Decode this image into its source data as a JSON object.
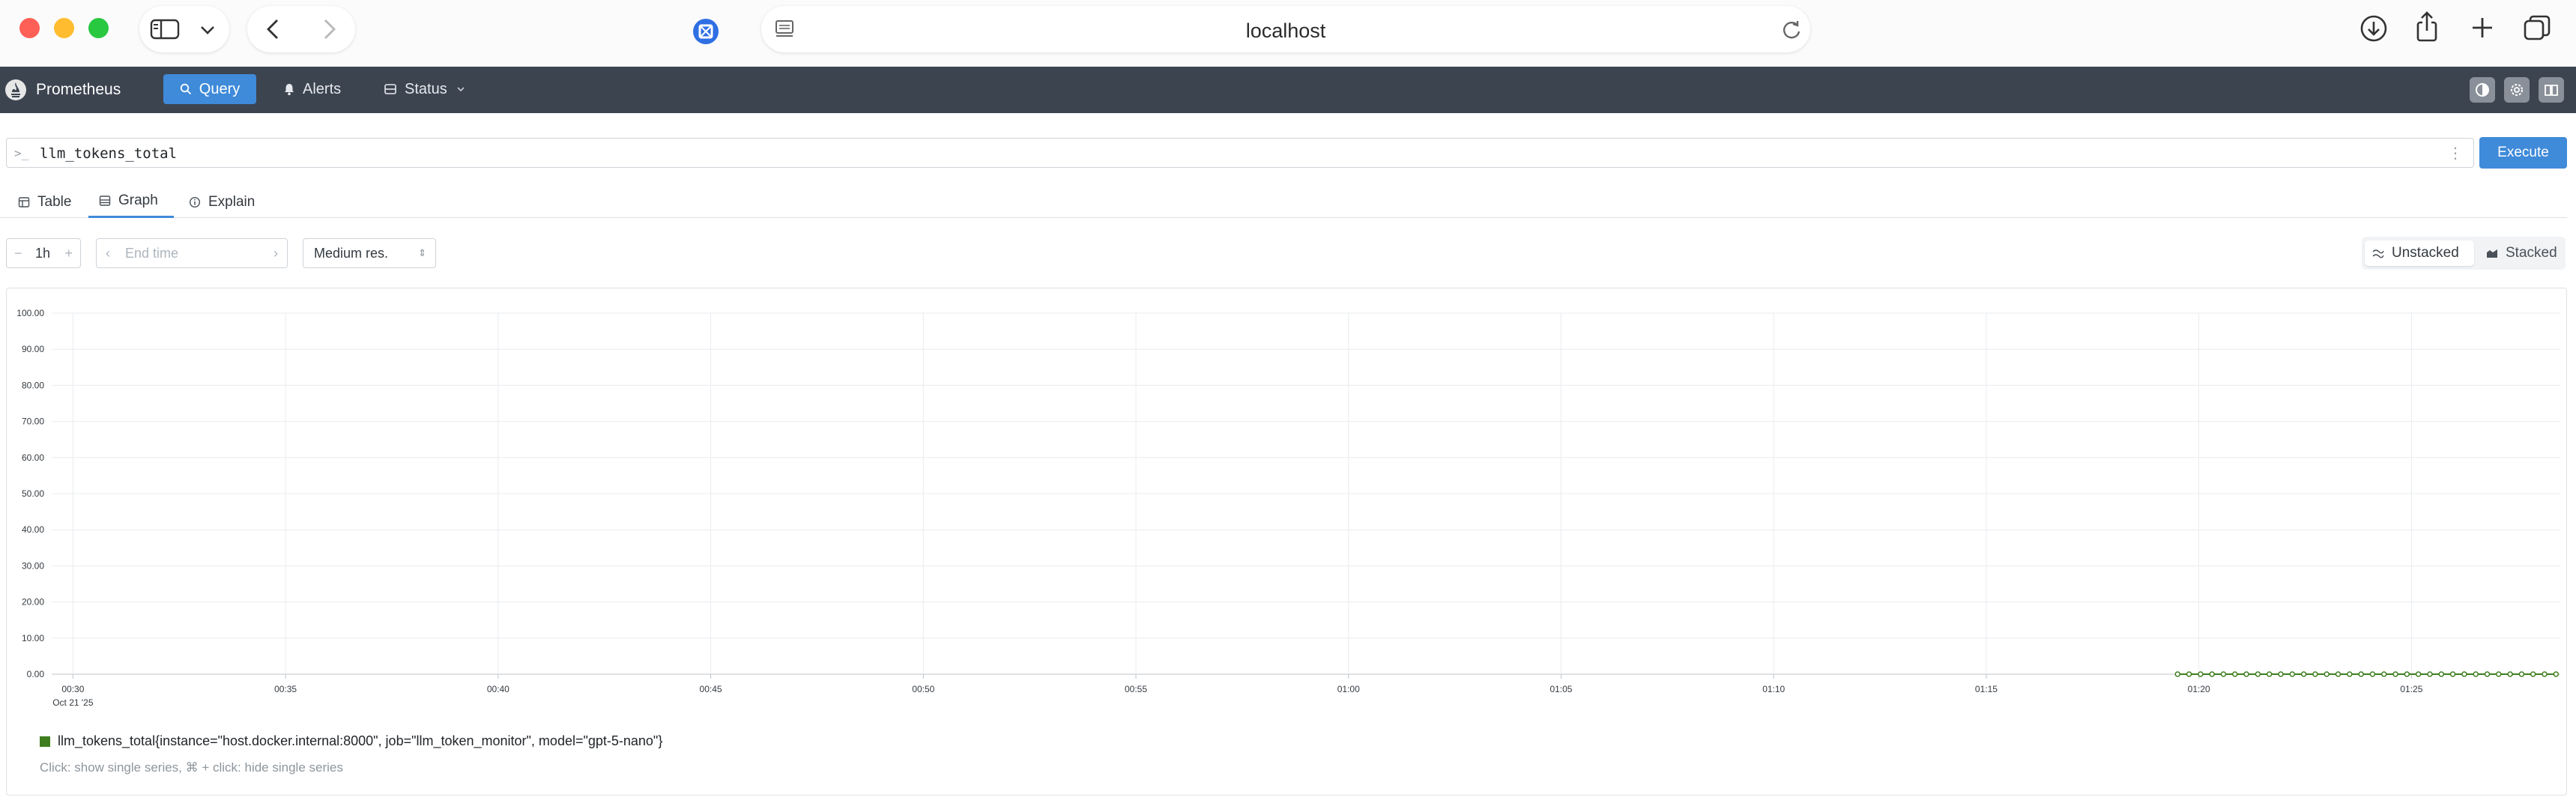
{
  "browser": {
    "url": "localhost"
  },
  "nav": {
    "brand": "Prometheus",
    "query": "Query",
    "alerts": "Alerts",
    "status": "Status"
  },
  "query": {
    "prompt": ">_",
    "expression": "llm_tokens_total",
    "execute": "Execute"
  },
  "tabs": {
    "table": "Table",
    "graph": "Graph",
    "explain": "Explain",
    "active": "Graph"
  },
  "controls": {
    "range": "1h",
    "end_time_placeholder": "End time",
    "resolution": "Medium res.",
    "unstacked": "Unstacked",
    "stacked": "Stacked",
    "mode": "Unstacked"
  },
  "chart_data": {
    "type": "line",
    "title": "",
    "xlabel": "",
    "ylabel": "",
    "ylim": [
      0,
      100
    ],
    "yticks": [
      "0.00",
      "10.00",
      "20.00",
      "30.00",
      "40.00",
      "50.00",
      "60.00",
      "70.00",
      "80.00",
      "90.00",
      "100.00"
    ],
    "xlim_minutes": [
      29.5,
      88.5
    ],
    "xticks": [
      {
        "label": "00:30",
        "sublabel": "Oct 21 '25",
        "minutes": 30
      },
      {
        "label": "00:35",
        "minutes": 35
      },
      {
        "label": "00:40",
        "minutes": 40
      },
      {
        "label": "00:45",
        "minutes": 45
      },
      {
        "label": "00:50",
        "minutes": 50
      },
      {
        "label": "00:55",
        "minutes": 55
      },
      {
        "label": "01:00",
        "minutes": 60
      },
      {
        "label": "01:05",
        "minutes": 65
      },
      {
        "label": "01:10",
        "minutes": 70
      },
      {
        "label": "01:15",
        "minutes": 75
      },
      {
        "label": "01:20",
        "minutes": 80
      },
      {
        "label": "01:25",
        "minutes": 85
      }
    ],
    "grid": true,
    "series": [
      {
        "name": "llm_tokens_total{instance=\"host.docker.internal:8000\", job=\"llm_token_monitor\", model=\"gpt-5-nano\"}",
        "color": "#3f7e1f",
        "x_minutes_start": 79.5,
        "x_minutes_end": 88.4,
        "points": 34,
        "y": 0
      }
    ],
    "legend_hint": "Click: show single series, ⌘ + click: hide single series"
  }
}
